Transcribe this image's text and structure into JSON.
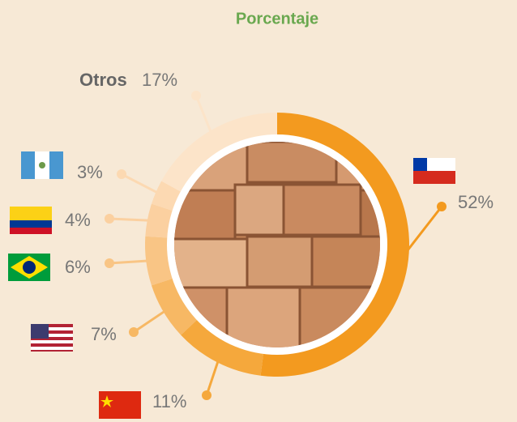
{
  "chart_data": {
    "type": "pie",
    "title": "Porcentaje",
    "categories": [
      null,
      null,
      null,
      null,
      null,
      null,
      "Otros"
    ],
    "values": [
      52,
      11,
      7,
      6,
      4,
      3,
      17
    ],
    "value_labels": [
      "52%",
      "11%",
      "7%",
      "6%",
      "4%",
      "3%",
      "17%"
    ],
    "colors": [
      "#f39a1f",
      "#f5a83c",
      "#f7b864",
      "#f9c585",
      "#fbd0a0",
      "#fcd9b2",
      "#fce4c9"
    ]
  }
}
